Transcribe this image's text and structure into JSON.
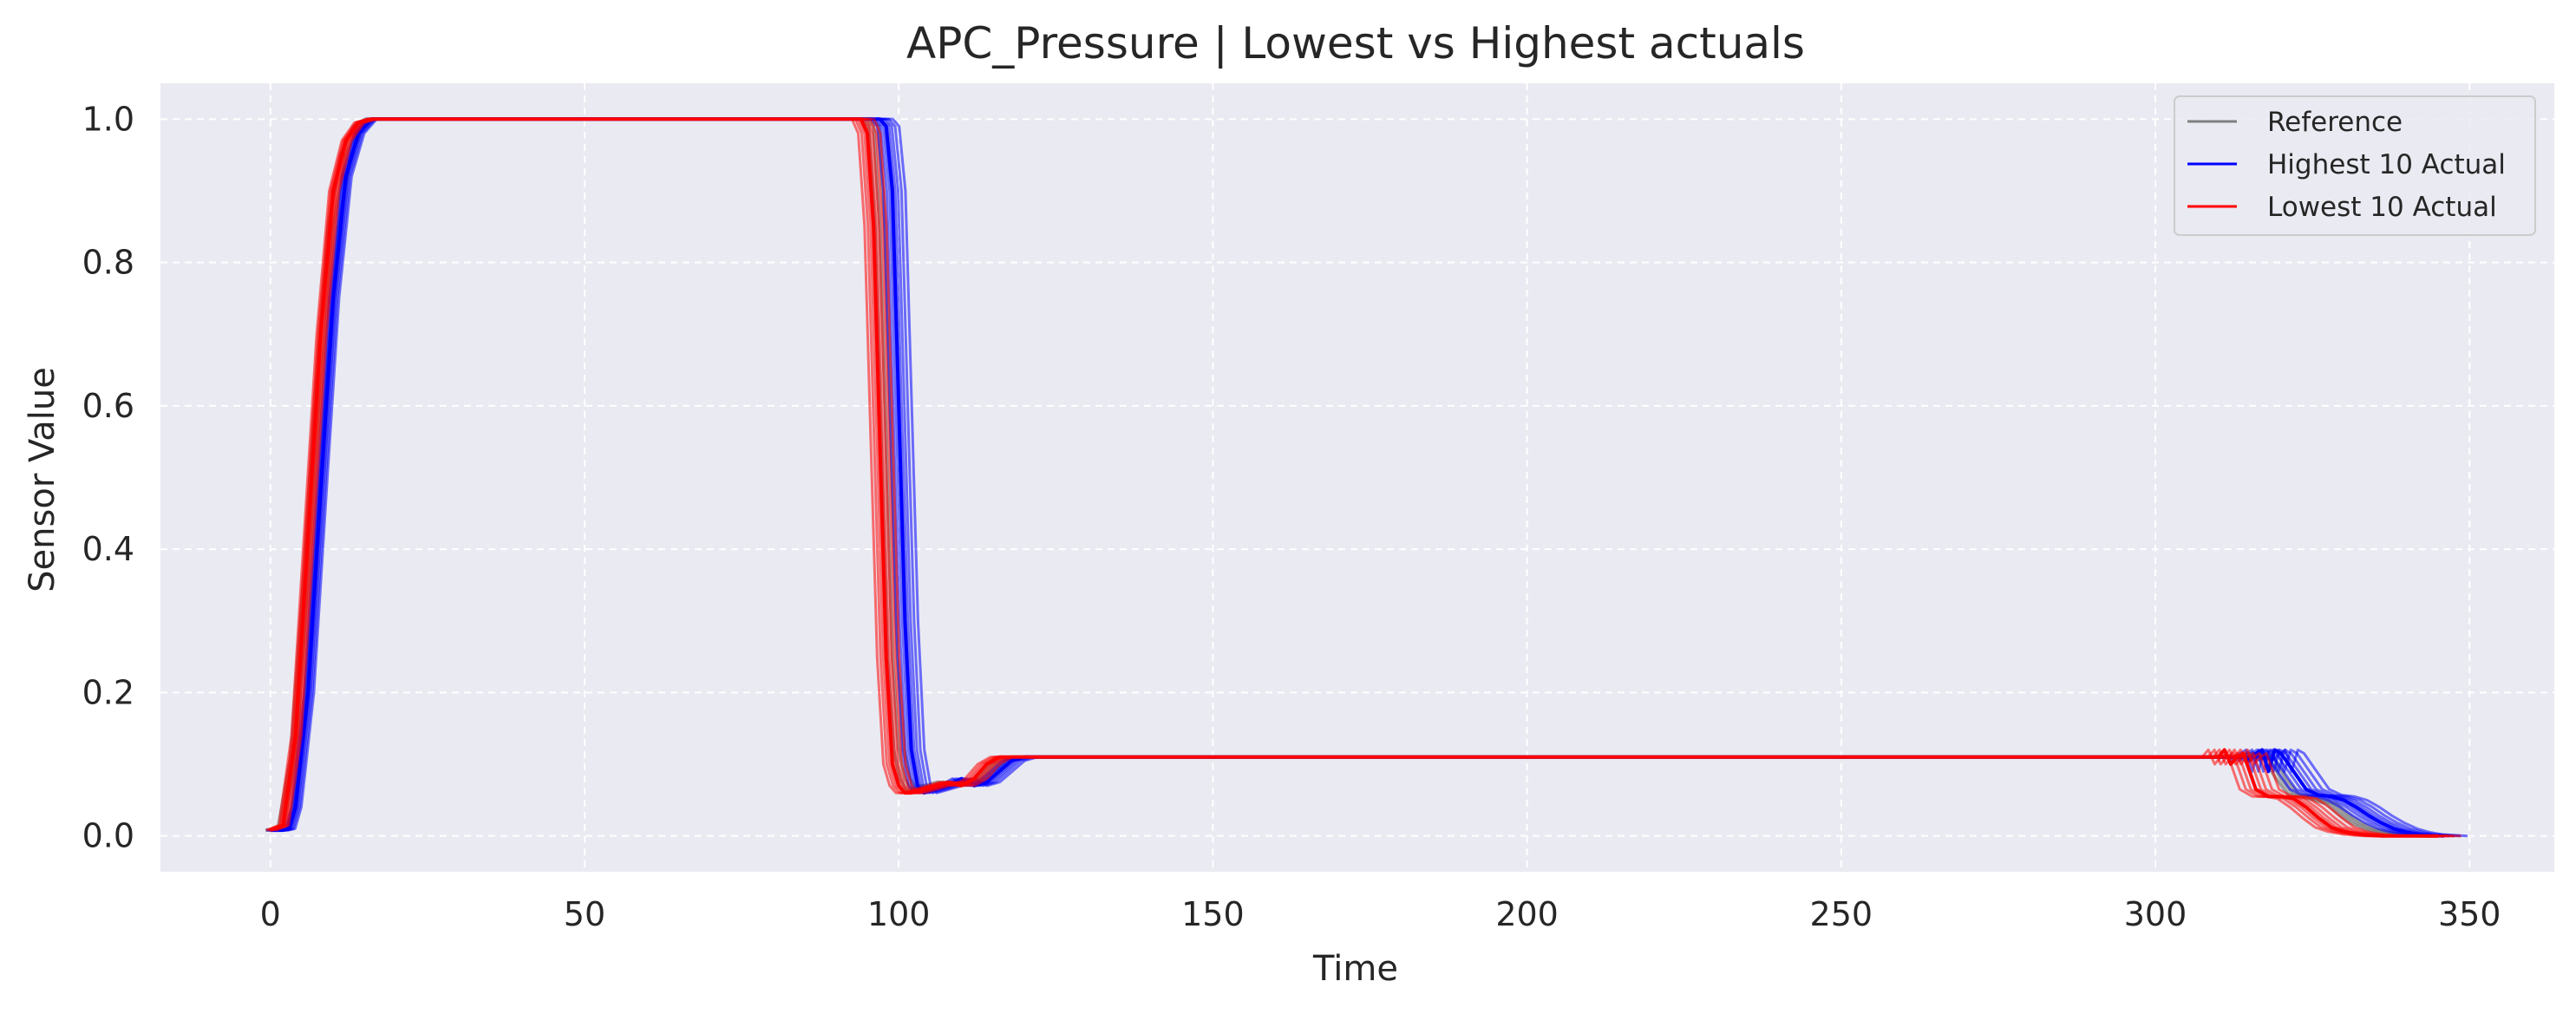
{
  "chart_data": {
    "type": "line",
    "title": "APC_Pressure | Lowest vs Highest actuals",
    "xlabel": "Time",
    "ylabel": "Sensor Value",
    "xlim": [
      -17.5,
      363.5
    ],
    "ylim": [
      -0.05,
      1.05
    ],
    "xticks": [
      0,
      50,
      100,
      150,
      200,
      250,
      300,
      350
    ],
    "yticks": [
      0.0,
      0.2,
      0.4,
      0.6,
      0.8,
      1.0
    ],
    "xtick_labels": [
      "0",
      "50",
      "100",
      "150",
      "200",
      "250",
      "300",
      "350"
    ],
    "ytick_labels": [
      "0.0",
      "0.2",
      "0.4",
      "0.6",
      "0.8",
      "1.0"
    ],
    "grid": true,
    "background": "#eaeaf2",
    "legend": {
      "placement": "top-right",
      "entries": [
        {
          "label": "Reference",
          "color": "#808080"
        },
        {
          "label": "Highest 10 Actual",
          "color": "#0000ff"
        },
        {
          "label": "Lowest 10 Actual",
          "color": "#ff0000"
        }
      ]
    },
    "series": [
      {
        "name": "Reference",
        "color": "#808080",
        "x": [
          0,
          2,
          4,
          6,
          8,
          10,
          12,
          14,
          16,
          18,
          95,
          96,
          97,
          98,
          99,
          100,
          101,
          102,
          103,
          104,
          105,
          107,
          109,
          111,
          113,
          115,
          117,
          119,
          121,
          140,
          310,
          312,
          314,
          316,
          318,
          320,
          322,
          324,
          326,
          328,
          330,
          332,
          334,
          336,
          338,
          340,
          343,
          345
        ],
        "y": [
          0.008,
          0.01,
          0.11,
          0.35,
          0.62,
          0.85,
          0.95,
          0.99,
          1.0,
          1.0,
          1.0,
          0.99,
          0.85,
          0.55,
          0.25,
          0.12,
          0.08,
          0.065,
          0.065,
          0.07,
          0.07,
          0.075,
          0.072,
          0.075,
          0.08,
          0.095,
          0.108,
          0.11,
          0.11,
          0.11,
          0.11,
          0.11,
          0.11,
          0.115,
          0.11,
          0.08,
          0.058,
          0.055,
          0.05,
          0.045,
          0.03,
          0.018,
          0.01,
          0.005,
          0.003,
          0.001,
          0.0,
          0.0
        ]
      },
      {
        "name": "Highest 10 Actual",
        "color": "#0000ff",
        "x": [
          0,
          2,
          3,
          4,
          6,
          8,
          10,
          12,
          14,
          16,
          18,
          20,
          96,
          97,
          98,
          99,
          100,
          101,
          102,
          103,
          104,
          106,
          108,
          110,
          112,
          114,
          116,
          118,
          120,
          122,
          142,
          312,
          314,
          315,
          316,
          317,
          318,
          319,
          320,
          322,
          324,
          326,
          328,
          330,
          332,
          334,
          336,
          338,
          340,
          342,
          344,
          346
        ],
        "y": [
          0.008,
          0.008,
          0.01,
          0.04,
          0.2,
          0.48,
          0.75,
          0.92,
          0.98,
          1.0,
          1.0,
          1.0,
          1.0,
          1.0,
          0.99,
          0.9,
          0.6,
          0.3,
          0.12,
          0.07,
          0.06,
          0.065,
          0.07,
          0.08,
          0.07,
          0.075,
          0.09,
          0.105,
          0.11,
          0.11,
          0.11,
          0.11,
          0.11,
          0.105,
          0.115,
          0.12,
          0.09,
          0.12,
          0.115,
          0.09,
          0.065,
          0.057,
          0.055,
          0.05,
          0.04,
          0.028,
          0.018,
          0.01,
          0.005,
          0.002,
          0.001,
          0.0
        ]
      },
      {
        "name": "Lowest 10 Actual",
        "color": "#ff0000",
        "x": [
          0,
          2,
          4,
          6,
          8,
          10,
          12,
          14,
          16,
          18,
          94,
          95,
          96,
          97,
          98,
          99,
          100,
          101,
          102,
          104,
          106,
          108,
          110,
          112,
          114,
          116,
          118,
          120,
          140,
          309,
          310,
          311,
          312,
          313,
          314,
          315,
          316,
          318,
          320,
          322,
          324,
          326,
          328,
          330,
          332,
          334,
          336,
          340,
          345
        ],
        "y": [
          0.008,
          0.015,
          0.14,
          0.42,
          0.7,
          0.9,
          0.97,
          0.995,
          1.0,
          1.0,
          1.0,
          0.98,
          0.85,
          0.55,
          0.25,
          0.1,
          0.07,
          0.06,
          0.06,
          0.065,
          0.07,
          0.075,
          0.07,
          0.08,
          0.1,
          0.11,
          0.11,
          0.11,
          0.11,
          0.11,
          0.11,
          0.12,
          0.1,
          0.11,
          0.115,
          0.09,
          0.065,
          0.055,
          0.055,
          0.052,
          0.04,
          0.025,
          0.012,
          0.006,
          0.003,
          0.001,
          0.0,
          0.0,
          0.0
        ]
      }
    ]
  }
}
